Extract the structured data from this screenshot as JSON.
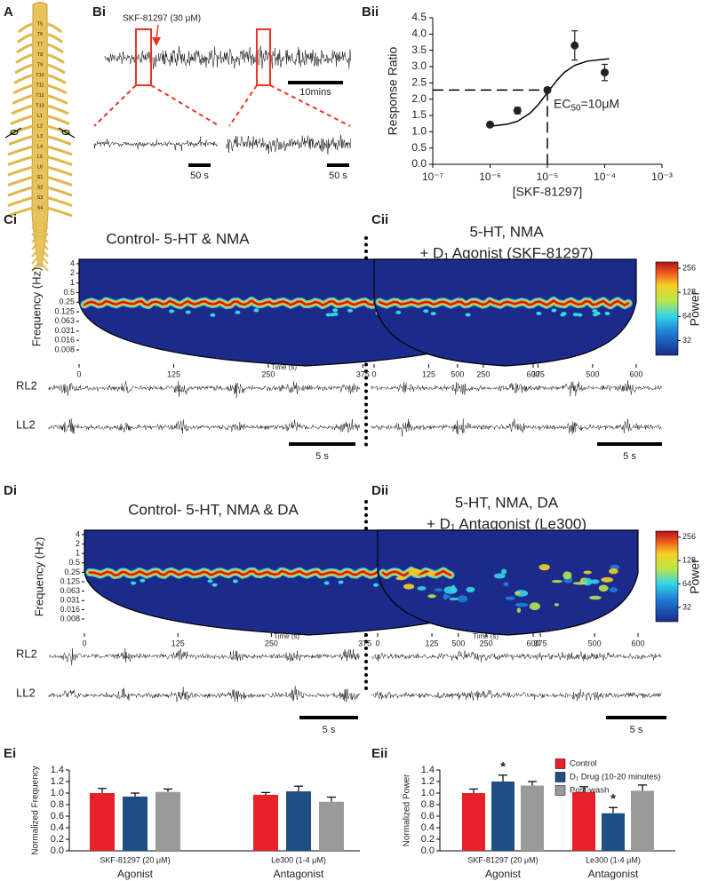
{
  "panel_labels": {
    "a": "A",
    "bi": "Bi"
  },
  "spinal_segments": [
    "T5",
    "T6",
    "T7",
    "T8",
    "T9",
    "T10",
    "T11",
    "T12",
    "T13",
    "L1",
    "L2",
    "L3",
    "L4",
    "L5",
    "L6",
    "S1",
    "S2",
    "S3",
    "S4"
  ],
  "bi": {
    "drug": "SKF-81297 (30 μM)",
    "scale_main": "10mins",
    "scale_zoom": [
      "50 s",
      "50 s"
    ]
  },
  "chart_data": [
    {
      "type": "scatter",
      "label": "Bii",
      "ylabel": "Response Ratio",
      "xlabel": "[SKF-81297]",
      "xlog": true,
      "xlim": [
        1e-07,
        0.001
      ],
      "xticks": [
        {
          "value": 1e-07,
          "label": "10⁻⁷"
        },
        {
          "value": 1e-06,
          "label": "10⁻⁶"
        },
        {
          "value": 1e-05,
          "label": "10⁻⁵"
        },
        {
          "value": 0.0001,
          "label": "10⁻⁴"
        },
        {
          "value": 0.001,
          "label": "10⁻³"
        }
      ],
      "ylim": [
        0,
        4.5
      ],
      "yticks": [
        {
          "value": 0,
          "label": "0.0"
        },
        0.5,
        {
          "value": 1,
          "label": "1.0"
        },
        1.5,
        {
          "value": 2,
          "label": "2.0"
        },
        2.5,
        {
          "value": 3,
          "label": "3.0"
        },
        3.5,
        {
          "value": 4,
          "label": "4.0"
        },
        4.5
      ],
      "x": [
        1e-06,
        3e-06,
        1e-05,
        3e-05,
        0.0001
      ],
      "series": [
        {
          "color": "#222222",
          "values": [
            1.22,
            1.65,
            2.28,
            3.65,
            2.82
          ],
          "errors": [
            0.07,
            0.1,
            0.08,
            0.45,
            0.25
          ]
        }
      ],
      "fit": {
        "x": [
          1e-06,
          2e-06,
          3e-06,
          5e-06,
          7e-06,
          1e-05,
          1.5e-05,
          2e-05,
          3e-05,
          5e-05,
          0.0001,
          0.00012
        ],
        "values": [
          1.17,
          1.23,
          1.32,
          1.57,
          1.84,
          2.2,
          2.6,
          2.83,
          3.04,
          3.17,
          3.23,
          3.24
        ]
      },
      "reference": {
        "x": 1e-05,
        "y": 2.28
      },
      "annotation": {
        "text": "EC",
        "sub": "50",
        "rest": "=10μM"
      }
    },
    {
      "type": "spectrogram",
      "label": "Ci",
      "title": [
        "Control- 5-HT & NMA"
      ],
      "ylabel": "Frequency (Hz)",
      "xlabel": "Time (s)",
      "xlim": [
        0,
        600
      ],
      "xticks": [
        0,
        125,
        250,
        375,
        500,
        600
      ],
      "ylog": true,
      "ylim": [
        0.008,
        4
      ],
      "yticks": [
        4,
        2,
        1,
        0.5,
        0.25,
        0.125,
        0.063,
        0.031,
        0.016,
        0.008
      ],
      "traces": [
        "RL2",
        "LL2"
      ],
      "scale_bar": "5 s"
    },
    {
      "type": "spectrogram",
      "label": "Cii",
      "title": [
        "5-HT, NMA",
        "+ D₁ Agonist (SKF-81297)"
      ],
      "xlim": [
        0,
        600
      ],
      "xticks": [
        0,
        125,
        250,
        375,
        500,
        600
      ],
      "ylog": true,
      "ylim": [
        0.008,
        4
      ],
      "colorbar": {
        "label": "Power",
        "ticks": [
          256,
          128,
          64,
          32
        ],
        "lim": [
          21,
          306
        ]
      },
      "scale_bar": "5 s"
    },
    {
      "type": "spectrogram",
      "label": "Di",
      "title": [
        "Control- 5-HT, NMA & DA"
      ],
      "ylabel": "Frequency (Hz)",
      "xlabel": "Time (s)",
      "xlim": [
        0,
        600
      ],
      "xticks": [
        0,
        125,
        250,
        375,
        500,
        600
      ],
      "ylog": true,
      "ylim": [
        0.008,
        4
      ],
      "yticks": [
        4,
        2,
        1,
        0.5,
        0.25,
        0.125,
        0.063,
        0.031,
        0.016,
        0.008
      ],
      "traces": [
        "RL2",
        "LL2"
      ],
      "scale_bar": "5 s"
    },
    {
      "type": "spectrogram",
      "label": "Dii",
      "title": [
        "5-HT, NMA, DA",
        "+ D₁ Antagonist (Le300)"
      ],
      "xlabel": "Time (s)",
      "xlim": [
        0,
        600
      ],
      "xticks": [
        0,
        125,
        250,
        375,
        500,
        600
      ],
      "ylog": true,
      "ylim": [
        0.008,
        4
      ],
      "colorbar": {
        "label": "Power",
        "ticks": [
          256,
          128,
          64,
          32
        ],
        "lim": [
          21,
          306
        ]
      },
      "scale_bar": "5 s"
    },
    {
      "type": "bar",
      "label": "Ei",
      "ylabel": "Normalized Frequency",
      "categories": [
        "SKF-81297 (20 μM)",
        "Le300 (1-4 μM)"
      ],
      "group_labels": [
        "Agonist",
        "Antagonist"
      ],
      "ylim": [
        0,
        1.4
      ],
      "yticks": [
        {
          "value": 0,
          "label": "0.0"
        },
        0.2,
        0.4,
        0.6,
        0.8,
        {
          "value": 1,
          "label": "1.0"
        },
        1.2,
        1.4
      ],
      "series": [
        {
          "color": "#e8202a",
          "values": [
            1.0,
            0.97
          ],
          "errors": [
            0.08,
            0.04
          ]
        },
        {
          "color": "#1f4e85",
          "values": [
            0.94,
            1.03
          ],
          "errors": [
            0.06,
            0.09
          ]
        },
        {
          "color": "#9a9a9a",
          "values": [
            1.02,
            0.85
          ],
          "errors": [
            0.05,
            0.08
          ]
        }
      ]
    },
    {
      "type": "bar",
      "label": "Eii",
      "ylabel": "Normalized Power",
      "legend": "top-right",
      "categories": [
        "SKF-81297 (20 μM)",
        "Le300 (1-4 μM)"
      ],
      "group_labels": [
        "Agonist",
        "Antagonist"
      ],
      "ylim": [
        0,
        1.4
      ],
      "yticks": [
        {
          "value": 0,
          "label": "0.0"
        },
        0.2,
        0.4,
        0.6,
        0.8,
        {
          "value": 1,
          "label": "1.0"
        },
        1.2,
        1.4
      ],
      "series": [
        {
          "name": "Control",
          "color": "#e8202a",
          "values": [
            1.0,
            1.02
          ],
          "errors": [
            0.07,
            0.09
          ]
        },
        {
          "name": "D₁ Drug (10-20 minutes)",
          "color": "#1f4e85",
          "values": [
            1.2,
            0.65
          ],
          "errors": [
            0.11,
            0.1
          ],
          "significance": [
            "*",
            "*"
          ]
        },
        {
          "name": "Post-wash",
          "color": "#9a9a9a",
          "values": [
            1.13,
            1.04
          ],
          "errors": [
            0.07,
            0.1
          ]
        }
      ]
    }
  ]
}
